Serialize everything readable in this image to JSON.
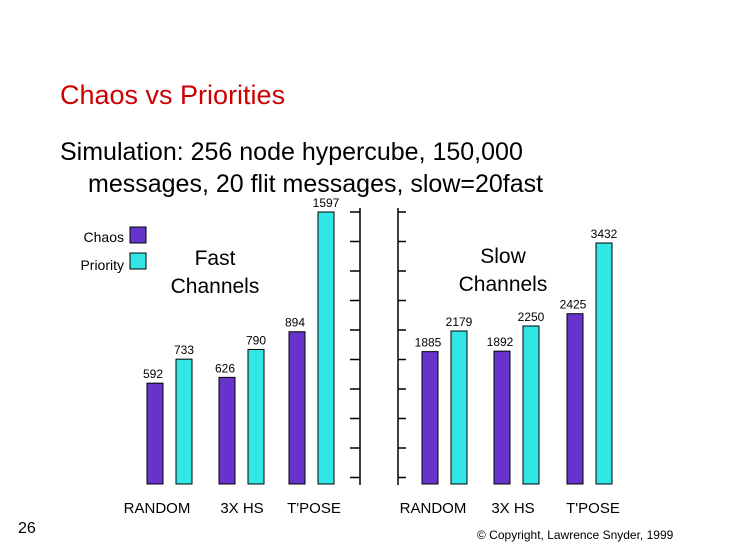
{
  "slide": {
    "title": "Chaos vs Priorities",
    "subtitle_line1": "Simulation:  256 node hypercube, 150,000",
    "subtitle_line2": "messages, 20 flit messages, slow=20fast",
    "page_number": "26",
    "copyright": "© Copyright, Lawrence Snyder, 1999"
  },
  "colors": {
    "chaos": "#6633cc",
    "priority": "#33e6e6",
    "title": "#cc0000"
  },
  "chart_data": [
    {
      "type": "bar",
      "title": "Fast Channels",
      "categories": [
        "RANDOM",
        "3X HS",
        "T'POSE"
      ],
      "series": [
        {
          "name": "Chaos",
          "values": [
            592,
            626,
            894
          ]
        },
        {
          "name": "Priority",
          "values": [
            733,
            790,
            1597
          ]
        }
      ],
      "ylim": [
        0,
        1620
      ],
      "legend": "top-left"
    },
    {
      "type": "bar",
      "title": "Slow Channels",
      "categories": [
        "RANDOM",
        "3X HS",
        "T'POSE"
      ],
      "series": [
        {
          "name": "Chaos",
          "values": [
            1885,
            1892,
            2425
          ]
        },
        {
          "name": "Priority",
          "values": [
            2179,
            2250,
            3432
          ]
        }
      ],
      "ylim": [
        0,
        3500
      ]
    }
  ]
}
